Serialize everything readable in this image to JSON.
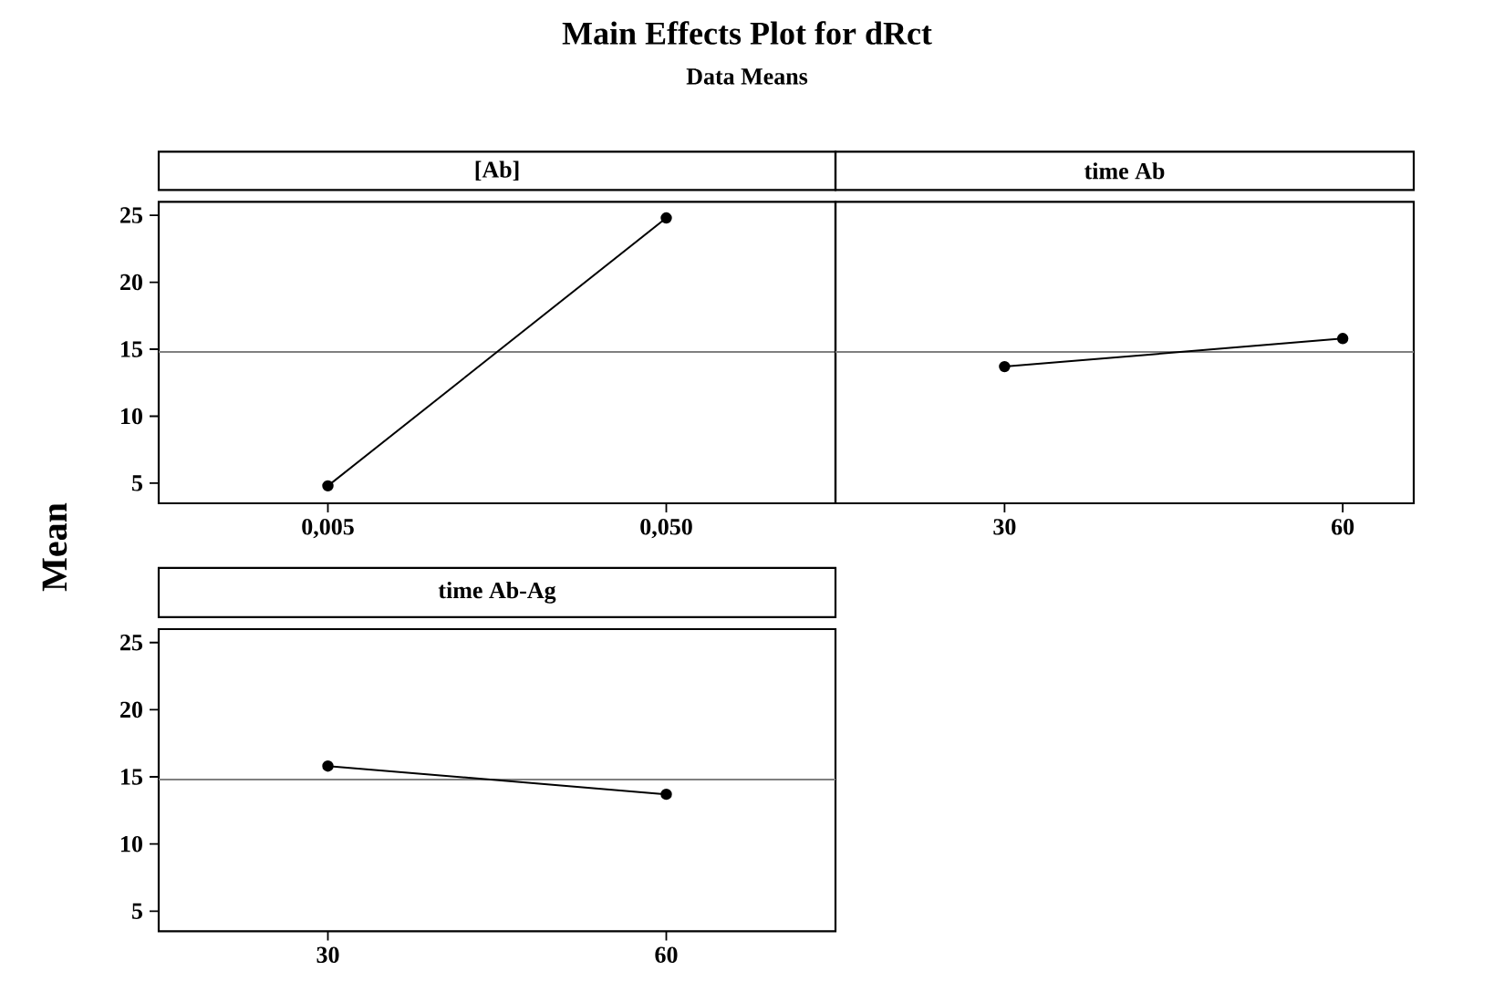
{
  "chart_data": [
    {
      "type": "other",
      "title": "Main Effects Plot for dRct",
      "subtitle": "Data Means",
      "ylabel": "Mean"
    },
    {
      "type": "line",
      "title": "[Ab]",
      "categories": [
        "0,005",
        "0,050"
      ],
      "series": [
        {
          "color": "#000000",
          "values": [
            4.8,
            24.8
          ]
        }
      ],
      "marker": "circle",
      "line_style": "solid",
      "ylim": [
        3.5,
        26
      ],
      "yticks": [
        5,
        10,
        15,
        20,
        25
      ],
      "ref_lines": [
        {
          "axis": "y",
          "value": 14.8,
          "color": "#808080"
        }
      ]
    },
    {
      "type": "line",
      "title": "time Ab",
      "categories": [
        "30",
        "60"
      ],
      "series": [
        {
          "color": "#000000",
          "values": [
            13.7,
            15.8
          ]
        }
      ],
      "marker": "circle",
      "line_style": "solid",
      "ylim": [
        3.5,
        26
      ],
      "yticks": [
        5,
        10,
        15,
        20,
        25
      ],
      "tick_labels": "x",
      "ref_lines": [
        {
          "axis": "y",
          "value": 14.8,
          "color": "#808080"
        }
      ]
    },
    {
      "type": "line",
      "title": "time Ab-Ag",
      "categories": [
        "30",
        "60"
      ],
      "series": [
        {
          "color": "#000000",
          "values": [
            15.8,
            13.7
          ]
        }
      ],
      "marker": "circle",
      "line_style": "solid",
      "ylim": [
        3.5,
        26
      ],
      "yticks": [
        5,
        10,
        15,
        20,
        25
      ],
      "ref_lines": [
        {
          "axis": "y",
          "value": 14.8,
          "color": "#808080"
        }
      ]
    }
  ]
}
